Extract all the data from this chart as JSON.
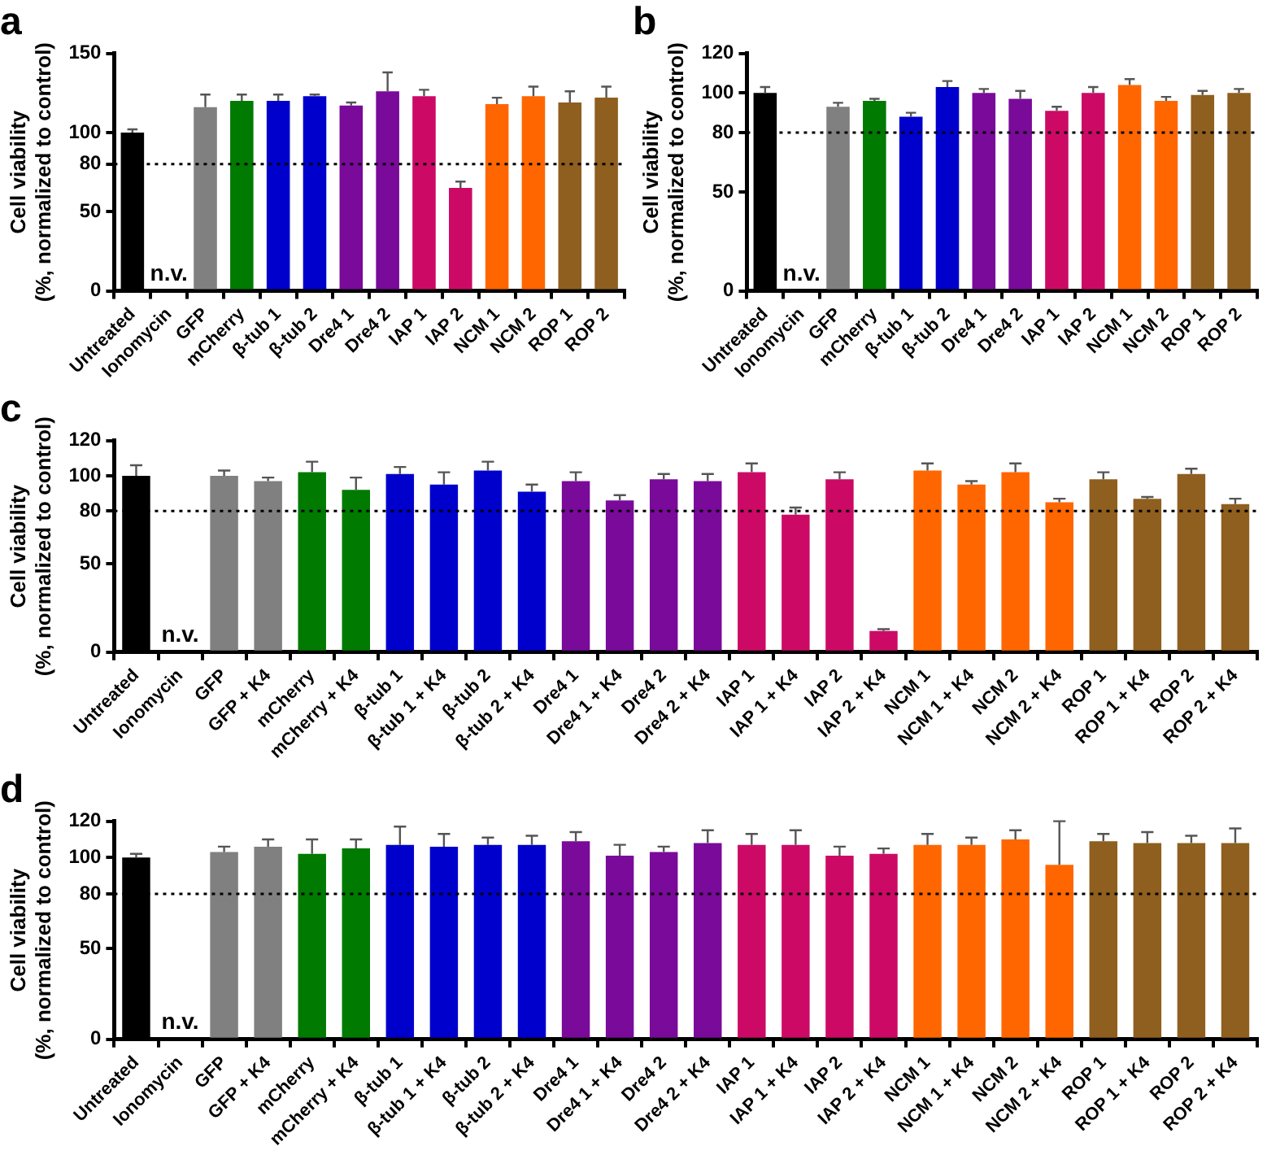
{
  "chart_data": [
    {
      "type": "bar",
      "title": "a",
      "ylabel": "Cell viability\n(%, normalized to control)",
      "categories": [
        "Untreated",
        "Ionomycin",
        "GFP",
        "mCherry",
        "β-tub 1",
        "β-tub 2",
        "Dre4 1",
        "Dre4 2",
        "IAP 1",
        "IAP 2",
        "NCM 1",
        "NCM 2",
        "ROP 1",
        "ROP 2"
      ],
      "values": [
        100,
        null,
        116,
        120,
        120,
        123,
        117,
        126,
        123,
        65,
        118,
        123,
        119,
        122
      ],
      "errors": [
        [
          100,
          102
        ],
        null,
        [
          116,
          124
        ],
        [
          120,
          124
        ],
        [
          120,
          124
        ],
        [
          123,
          124
        ],
        [
          117,
          119
        ],
        [
          126,
          138
        ],
        [
          123,
          127
        ],
        [
          65,
          69
        ],
        [
          118,
          122
        ],
        [
          123,
          129
        ],
        [
          119,
          126
        ],
        [
          122,
          129
        ]
      ],
      "colors": [
        "#000000",
        "#ffffff",
        "#808080",
        "#007a00",
        "#0000cc",
        "#0000cc",
        "#7a0a9a",
        "#7a0a9a",
        "#cc0a66",
        "#cc0a66",
        "#ff6600",
        "#ff6600",
        "#8f5f1f",
        "#8f5f1f"
      ],
      "ylim": [
        0,
        150
      ],
      "yticks": [
        0,
        50,
        80,
        100,
        150
      ],
      "grid": false,
      "legend": false,
      "ref_lines": [
        {
          "axis": "y",
          "value": 80,
          "line_style": "dotted"
        }
      ],
      "annotations": [
        "n.v."
      ]
    },
    {
      "type": "bar",
      "title": "b",
      "ylabel": "Cell viability\n(%, normalized to control)",
      "categories": [
        "Untreated",
        "Ionomycin",
        "GFP",
        "mCherry",
        "β-tub 1",
        "β-tub 2",
        "Dre4 1",
        "Dre4 2",
        "IAP 1",
        "IAP 2",
        "NCM 1",
        "NCM 2",
        "ROP 1",
        "ROP 2"
      ],
      "values": [
        100,
        null,
        93,
        96,
        88,
        103,
        100,
        97,
        91,
        100,
        104,
        96,
        99,
        100
      ],
      "errors": [
        [
          100,
          103
        ],
        null,
        [
          93,
          95
        ],
        [
          96,
          97
        ],
        [
          88,
          90
        ],
        [
          103,
          106
        ],
        [
          100,
          102
        ],
        [
          97,
          101
        ],
        [
          91,
          93
        ],
        [
          100,
          103
        ],
        [
          104,
          107
        ],
        [
          96,
          98
        ],
        [
          99,
          101
        ],
        [
          100,
          102
        ]
      ],
      "colors": [
        "#000000",
        "#ffffff",
        "#808080",
        "#007a00",
        "#0000cc",
        "#0000cc",
        "#7a0a9a",
        "#7a0a9a",
        "#cc0a66",
        "#cc0a66",
        "#ff6600",
        "#ff6600",
        "#8f5f1f",
        "#8f5f1f"
      ],
      "ylim": [
        0,
        120
      ],
      "yticks": [
        0,
        50,
        80,
        100,
        120
      ],
      "grid": false,
      "legend": false,
      "ref_lines": [
        {
          "axis": "y",
          "value": 80,
          "line_style": "dotted"
        }
      ],
      "annotations": [
        "n.v."
      ]
    },
    {
      "type": "bar",
      "title": "c",
      "ylabel": "Cell viability\n(%, normalized to control)",
      "categories": [
        "Untreated",
        "Ionomycin",
        "GFP",
        "GFP + K4",
        "mCherry",
        "mCherry + K4",
        "β-tub 1",
        "β-tub 1 + K4",
        "β-tub 2",
        "β-tub 2 + K4",
        "Dre4 1",
        "Dre4 1 + K4",
        "Dre4 2",
        "Dre4 2 + K4",
        "IAP 1",
        "IAP 1 + K4",
        "IAP 2",
        "IAP 2 + K4",
        "NCM 1",
        "NCM 1 + K4",
        "NCM 2",
        "NCM 2 + K4",
        "ROP 1",
        "ROP 1 + K4",
        "ROP 2",
        "ROP 2 + K4"
      ],
      "values": [
        100,
        null,
        100,
        97,
        102,
        92,
        101,
        95,
        103,
        91,
        97,
        86,
        98,
        97,
        102,
        78,
        98,
        12,
        103,
        95,
        102,
        85,
        98,
        87,
        101,
        84
      ],
      "errors": [
        [
          100,
          106
        ],
        null,
        [
          100,
          103
        ],
        [
          97,
          99
        ],
        [
          102,
          108
        ],
        [
          92,
          99
        ],
        [
          101,
          105
        ],
        [
          95,
          102
        ],
        [
          103,
          108
        ],
        [
          91,
          95
        ],
        [
          97,
          102
        ],
        [
          86,
          89
        ],
        [
          98,
          101
        ],
        [
          97,
          101
        ],
        [
          102,
          107
        ],
        [
          78,
          82
        ],
        [
          98,
          102
        ],
        [
          12,
          13
        ],
        [
          103,
          107
        ],
        [
          95,
          97
        ],
        [
          102,
          107
        ],
        [
          85,
          87
        ],
        [
          98,
          102
        ],
        [
          87,
          88
        ],
        [
          101,
          104
        ],
        [
          84,
          87
        ]
      ],
      "colors": [
        "#000000",
        "#ffffff",
        "#808080",
        "#808080",
        "#007a00",
        "#007a00",
        "#0000cc",
        "#0000cc",
        "#0000cc",
        "#0000cc",
        "#7a0a9a",
        "#7a0a9a",
        "#7a0a9a",
        "#7a0a9a",
        "#cc0a66",
        "#cc0a66",
        "#cc0a66",
        "#cc0a66",
        "#ff6600",
        "#ff6600",
        "#ff6600",
        "#ff6600",
        "#8f5f1f",
        "#8f5f1f",
        "#8f5f1f",
        "#8f5f1f"
      ],
      "ylim": [
        0,
        120
      ],
      "yticks": [
        0,
        50,
        80,
        100,
        120
      ],
      "grid": false,
      "legend": false,
      "ref_lines": [
        {
          "axis": "y",
          "value": 80,
          "line_style": "dotted"
        }
      ],
      "annotations": [
        "n.v."
      ]
    },
    {
      "type": "bar",
      "title": "d",
      "ylabel": "Cell viability\n(%, normalized to control)",
      "categories": [
        "Untreated",
        "Ionomycin",
        "GFP",
        "GFP + K4",
        "mCherry",
        "mCherry + K4",
        "β-tub 1",
        "β-tub 1 + K4",
        "β-tub 2",
        "β-tub 2 + K4",
        "Dre4 1",
        "Dre4 1 + K4",
        "Dre4 2",
        "Dre4 2 + K4",
        "IAP 1",
        "IAP 1 + K4",
        "IAP 2",
        "IAP 2 + K4",
        "NCM 1",
        "NCM 1 + K4",
        "NCM 2",
        "NCM 2 + K4",
        "ROP 1",
        "ROP 1 + K4",
        "ROP 2",
        "ROP 2 + K4"
      ],
      "values": [
        100,
        null,
        103,
        106,
        102,
        105,
        107,
        106,
        107,
        107,
        109,
        101,
        103,
        108,
        107,
        107,
        101,
        102,
        107,
        107,
        110,
        96,
        109,
        108,
        108,
        108
      ],
      "errors": [
        [
          100,
          102
        ],
        null,
        [
          103,
          106
        ],
        [
          106,
          110
        ],
        [
          102,
          110
        ],
        [
          105,
          110
        ],
        [
          107,
          117
        ],
        [
          106,
          113
        ],
        [
          107,
          111
        ],
        [
          107,
          112
        ],
        [
          109,
          114
        ],
        [
          101,
          107
        ],
        [
          103,
          106
        ],
        [
          108,
          115
        ],
        [
          107,
          113
        ],
        [
          107,
          115
        ],
        [
          101,
          106
        ],
        [
          102,
          105
        ],
        [
          107,
          113
        ],
        [
          107,
          111
        ],
        [
          110,
          115
        ],
        [
          96,
          120
        ],
        [
          109,
          113
        ],
        [
          108,
          114
        ],
        [
          108,
          112
        ],
        [
          108,
          116
        ]
      ],
      "colors": [
        "#000000",
        "#ffffff",
        "#808080",
        "#808080",
        "#007a00",
        "#007a00",
        "#0000cc",
        "#0000cc",
        "#0000cc",
        "#0000cc",
        "#7a0a9a",
        "#7a0a9a",
        "#7a0a9a",
        "#7a0a9a",
        "#cc0a66",
        "#cc0a66",
        "#cc0a66",
        "#cc0a66",
        "#ff6600",
        "#ff6600",
        "#ff6600",
        "#ff6600",
        "#8f5f1f",
        "#8f5f1f",
        "#8f5f1f",
        "#8f5f1f"
      ],
      "ylim": [
        0,
        120
      ],
      "yticks": [
        0,
        50,
        80,
        100,
        120
      ],
      "grid": false,
      "legend": false,
      "ref_lines": [
        {
          "axis": "y",
          "value": 80,
          "line_style": "dotted"
        }
      ],
      "annotations": [
        "n.v."
      ]
    }
  ]
}
